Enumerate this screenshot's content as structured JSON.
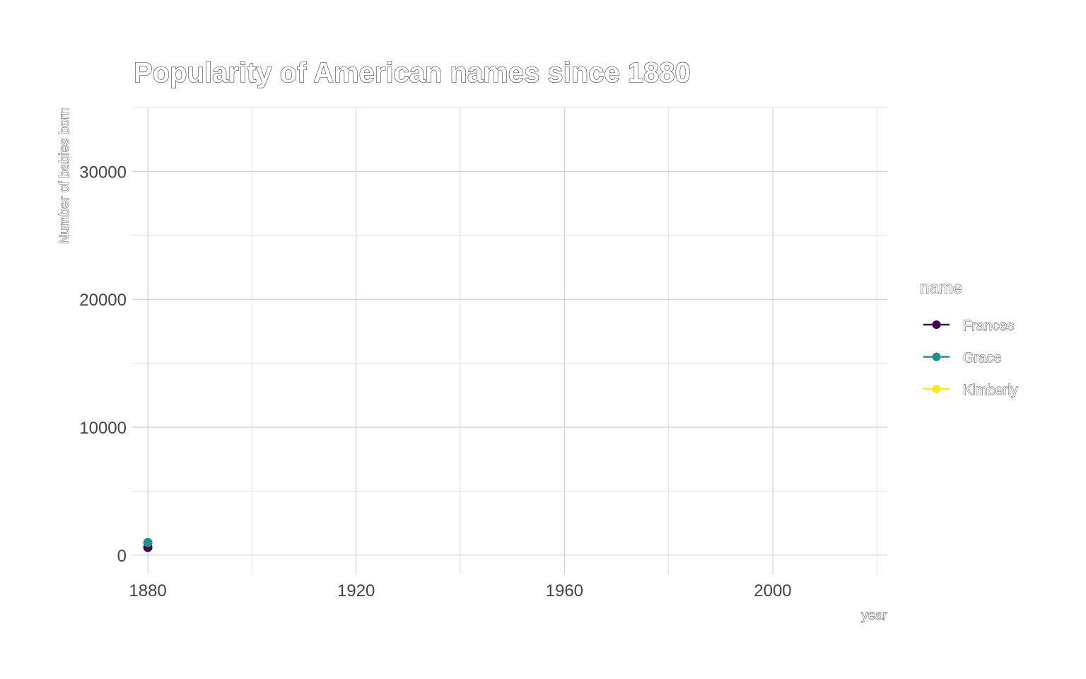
{
  "chart_data": {
    "type": "line",
    "title": "Popularity of American names since 1880",
    "xlabel": "year",
    "ylabel": "Number of babies born",
    "xlim": [
      1877,
      2022
    ],
    "ylim": [
      -1500,
      35000
    ],
    "x_ticks": [
      1880,
      1920,
      1960,
      2000
    ],
    "y_ticks": [
      0,
      10000,
      20000,
      30000
    ],
    "x_minor": [
      1900,
      1940,
      1980,
      2020
    ],
    "y_minor": [
      5000,
      15000,
      25000,
      35000
    ],
    "grid": true,
    "legend": {
      "title": "name",
      "placement": "right"
    },
    "series": [
      {
        "name": "Frances",
        "color": "#440154",
        "x": [
          1880
        ],
        "y": [
          605
        ]
      },
      {
        "name": "Grace",
        "color": "#21908C",
        "x": [
          1880
        ],
        "y": [
          982
        ]
      },
      {
        "name": "Kimberly",
        "color": "#FDE725",
        "x": [],
        "y": []
      }
    ]
  }
}
